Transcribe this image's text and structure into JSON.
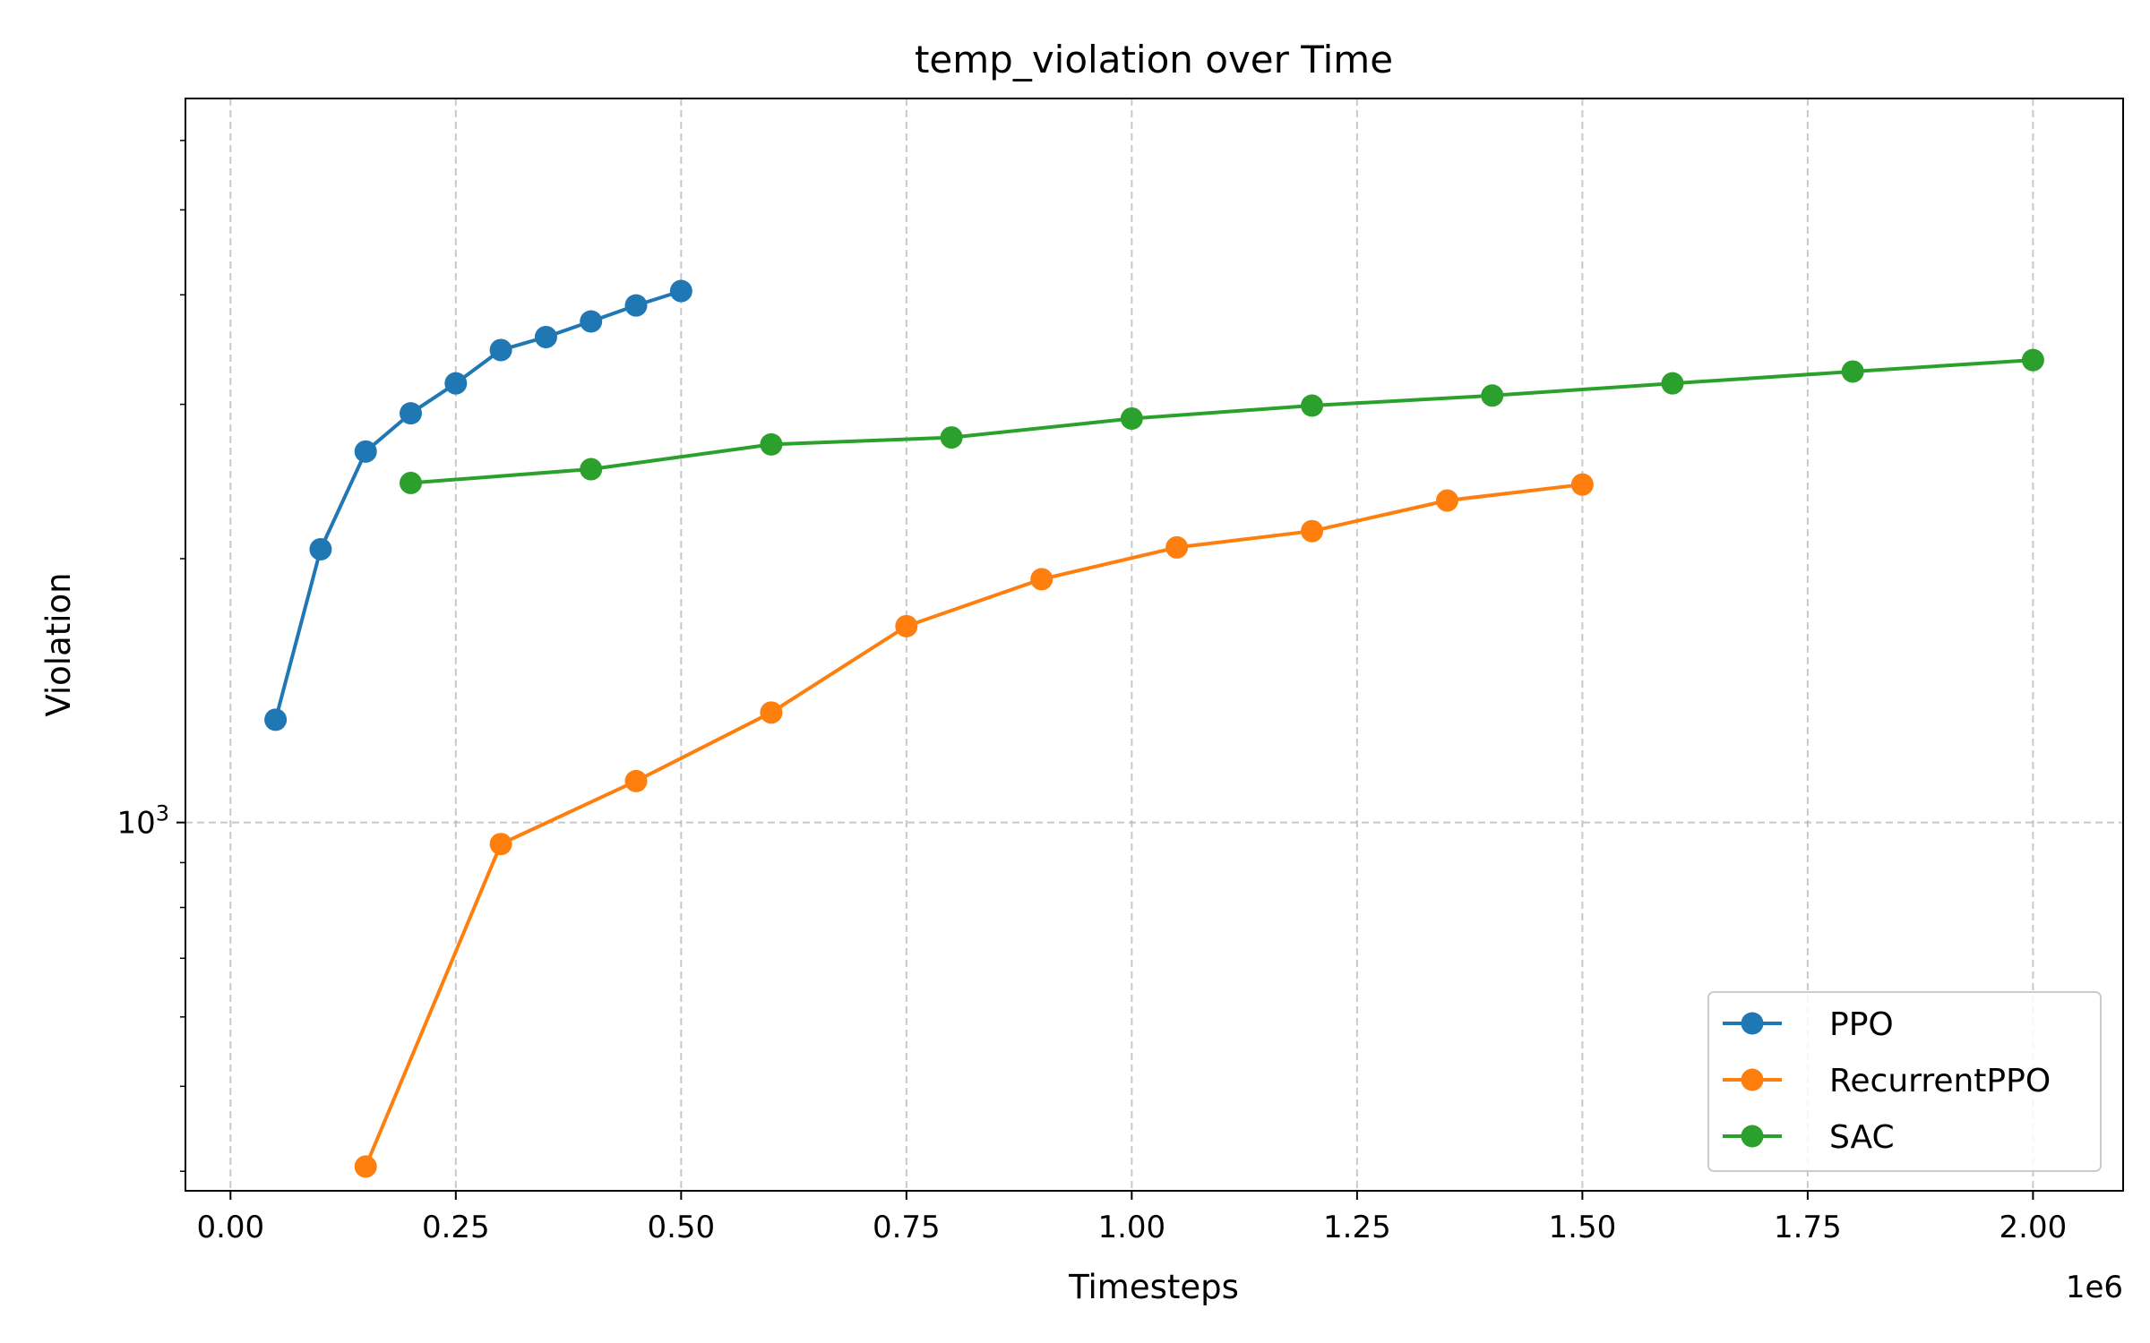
{
  "chart_data": {
    "type": "line",
    "title": "temp_violation over Time",
    "xlabel": "Timesteps",
    "ylabel": "Violation",
    "x_offset_label": "1e6",
    "x_multiplier": 1000000,
    "xlim": [
      -0.05,
      2.1
    ],
    "ylim": [
      380,
      6700
    ],
    "y_scale": "log",
    "x_ticks": [
      0.0,
      0.25,
      0.5,
      0.75,
      1.0,
      1.25,
      1.5,
      1.75,
      2.0
    ],
    "x_tick_labels": [
      "0.00",
      "0.25",
      "0.50",
      "0.75",
      "1.00",
      "1.25",
      "1.50",
      "1.75",
      "2.00"
    ],
    "y_major_ticks": [
      1000
    ],
    "y_minor_ticks": [
      400,
      500,
      600,
      700,
      800,
      900,
      2000,
      3000,
      4000,
      5000,
      6000
    ],
    "grid": true,
    "legend_position": "lower right",
    "series": [
      {
        "name": "PPO",
        "color": "#1f77b4",
        "x": [
          0.05,
          0.1,
          0.15,
          0.2,
          0.25,
          0.3,
          0.35,
          0.4,
          0.45,
          0.5
        ],
        "values": [
          1310,
          2050,
          2650,
          2930,
          3170,
          3460,
          3580,
          3730,
          3890,
          4040
        ]
      },
      {
        "name": "RecurrentPPO",
        "color": "#ff7f0e",
        "x": [
          0.15,
          0.3,
          0.45,
          0.6,
          0.75,
          0.9,
          1.05,
          1.2,
          1.35,
          1.5
        ],
        "values": [
          405,
          945,
          1115,
          1335,
          1675,
          1895,
          2060,
          2150,
          2330,
          2430
        ]
      },
      {
        "name": "SAC",
        "color": "#2ca02c",
        "x": [
          0.2,
          0.4,
          0.6,
          0.8,
          1.0,
          1.2,
          1.4,
          1.6,
          1.8,
          2.0
        ],
        "values": [
          2440,
          2530,
          2700,
          2750,
          2890,
          2990,
          3070,
          3170,
          3270,
          3370
        ]
      }
    ]
  }
}
